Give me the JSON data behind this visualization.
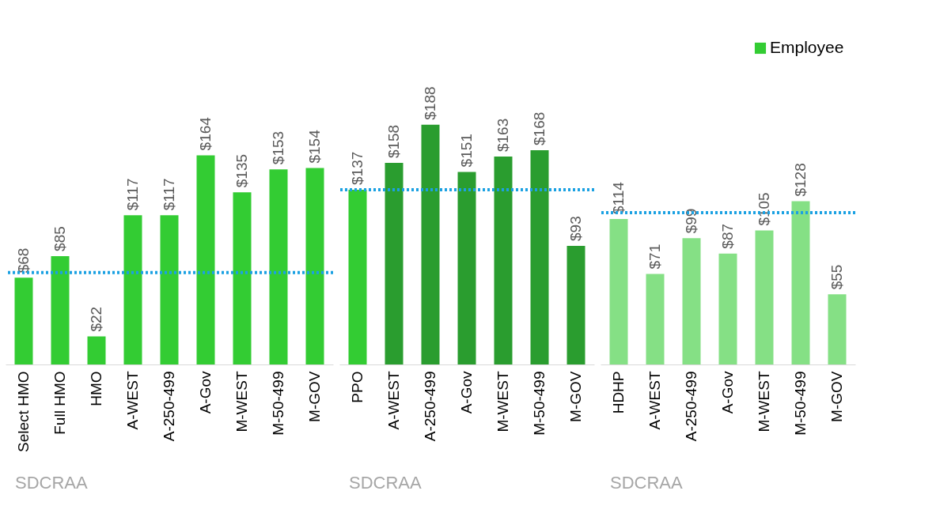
{
  "chart_data": [
    {
      "type": "bar",
      "categories": [
        "Select HMO",
        "Full HMO",
        "HMO",
        "A-WEST",
        "A-250-499",
        "A-Gov",
        "M-WEST",
        "M-50-499",
        "M-GOV"
      ],
      "series": [
        {
          "name": "Employee",
          "color": "#33cc33",
          "colors": [
            "#33cc33",
            "#33cc33",
            "#33cc33",
            "#33cc33",
            "#33cc33",
            "#33cc33",
            "#33cc33",
            "#33cc33",
            "#33cc33"
          ],
          "values": [
            68,
            85,
            22,
            117,
            117,
            164,
            135,
            153,
            154
          ],
          "value_labels": [
            "$68",
            "$85",
            "$22",
            "$117",
            "$117",
            "$164",
            "$135",
            "$153",
            "$154"
          ]
        }
      ],
      "ref_lines": [
        {
          "axis": "y",
          "value": 72,
          "color": "#1ba1e2",
          "line_style": "dotted"
        }
      ],
      "annotations": [
        "SDCRAA"
      ],
      "legend": "top right"
    },
    {
      "type": "bar",
      "categories": [
        "PPO",
        "A-WEST",
        "A-250-499",
        "A-Gov",
        "M-WEST",
        "M-50-499",
        "M-GOV"
      ],
      "series": [
        {
          "colors": [
            "#33cc33",
            "#2a9d2f",
            "#2a9d2f",
            "#2a9d2f",
            "#2a9d2f",
            "#2a9d2f",
            "#2a9d2f"
          ],
          "values": [
            137,
            158,
            188,
            151,
            163,
            168,
            93
          ],
          "value_labels": [
            "$137",
            "$158",
            "$188",
            "$151",
            "$163",
            "$168",
            "$93"
          ]
        }
      ],
      "ref_lines": [
        {
          "axis": "y",
          "value": 137,
          "color": "#1ba1e2",
          "line_style": "dotted"
        }
      ],
      "annotations": [
        "SDCRAA"
      ]
    },
    {
      "type": "bar",
      "categories": [
        "HDHP",
        "A-WEST",
        "A-250-499",
        "A-Gov",
        "M-WEST",
        "M-50-499",
        "M-GOV"
      ],
      "series": [
        {
          "colors": [
            "#85e085",
            "#85e085",
            "#85e085",
            "#85e085",
            "#85e085",
            "#85e085",
            "#85e085"
          ],
          "values": [
            114,
            71,
            99,
            87,
            105,
            128,
            55
          ],
          "value_labels": [
            "$114",
            "$71",
            "$99",
            "$87",
            "$105",
            "$128",
            "$55"
          ]
        }
      ],
      "ref_lines": [
        {
          "axis": "y",
          "value": 119,
          "color": "#1ba1e2",
          "line_style": "dotted"
        }
      ],
      "annotations": [
        "SDCRAA"
      ]
    }
  ]
}
